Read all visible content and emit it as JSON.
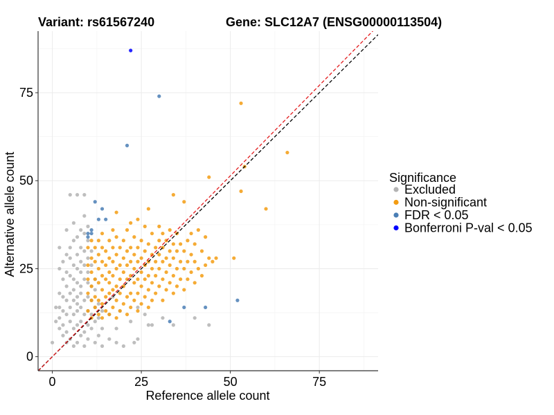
{
  "chart_data": {
    "type": "scatter",
    "title_left": "Variant: rs61567240",
    "title_right": "Gene: SLC12A7 (ENSG00000113504)",
    "xlabel": "Reference allele count",
    "ylabel": "Alternative allele count",
    "xlim": [
      -4,
      91.5
    ],
    "ylim": [
      -4,
      92.5
    ],
    "xticks": [
      0,
      25,
      50,
      75
    ],
    "yticks": [
      0,
      25,
      50,
      75
    ],
    "grid": true,
    "legend": {
      "title": "Significance",
      "position": "right",
      "entries": [
        {
          "name": "Excluded",
          "color": "#b3b3b3"
        },
        {
          "name": "Non-significant",
          "color": "#f39c12"
        },
        {
          "name": "FDR < 0.05",
          "color": "#4a7eb5"
        },
        {
          "name": "Bonferroni P-val < 0.05",
          "color": "#0000ff"
        }
      ]
    },
    "reference_lines": [
      {
        "name": "identity",
        "slope": 1,
        "intercept": 0,
        "color": "#000000",
        "dash": "dashed"
      },
      {
        "name": "fitted",
        "slope": 1.028,
        "intercept": 0,
        "color": "#e31a1c",
        "dash": "dashed"
      }
    ],
    "series": [
      {
        "name": "Excluded",
        "color": "#b3b3b3",
        "points": [
          [
            0,
            4
          ],
          [
            1,
            14
          ],
          [
            1,
            10
          ],
          [
            2,
            8
          ],
          [
            2,
            11
          ],
          [
            2,
            14
          ],
          [
            2,
            18
          ],
          [
            2,
            25
          ],
          [
            2,
            31
          ],
          [
            3,
            6
          ],
          [
            3,
            9
          ],
          [
            3,
            13
          ],
          [
            3,
            17
          ],
          [
            3,
            22
          ],
          [
            3,
            27
          ],
          [
            4,
            4
          ],
          [
            4,
            7
          ],
          [
            4,
            12
          ],
          [
            4,
            16
          ],
          [
            4,
            20
          ],
          [
            4,
            24
          ],
          [
            4,
            29
          ],
          [
            4,
            36
          ],
          [
            5,
            5
          ],
          [
            5,
            10
          ],
          [
            5,
            14
          ],
          [
            5,
            18
          ],
          [
            5,
            23
          ],
          [
            5,
            28
          ],
          [
            5,
            31
          ],
          [
            5,
            46
          ],
          [
            6,
            3
          ],
          [
            6,
            8
          ],
          [
            6,
            12
          ],
          [
            6,
            16
          ],
          [
            6,
            19
          ],
          [
            6,
            22
          ],
          [
            6,
            26
          ],
          [
            6,
            33
          ],
          [
            6,
            38
          ],
          [
            7,
            4
          ],
          [
            7,
            9
          ],
          [
            7,
            13
          ],
          [
            7,
            15
          ],
          [
            7,
            17
          ],
          [
            7,
            21
          ],
          [
            7,
            25
          ],
          [
            7,
            29
          ],
          [
            7,
            34
          ],
          [
            7,
            46
          ],
          [
            8,
            6
          ],
          [
            8,
            10
          ],
          [
            8,
            14
          ],
          [
            8,
            18
          ],
          [
            8,
            20
          ],
          [
            8,
            24
          ],
          [
            8,
            27
          ],
          [
            8,
            31
          ],
          [
            8,
            36
          ],
          [
            9,
            3
          ],
          [
            9,
            7
          ],
          [
            9,
            12
          ],
          [
            9,
            16
          ],
          [
            9,
            22
          ],
          [
            9,
            26
          ],
          [
            9,
            30
          ],
          [
            9,
            35
          ],
          [
            9,
            40
          ],
          [
            9,
            46
          ],
          [
            10,
            5
          ],
          [
            10,
            9
          ],
          [
            10,
            13
          ],
          [
            10,
            17
          ],
          [
            10,
            21
          ],
          [
            10,
            24
          ],
          [
            10,
            28
          ],
          [
            10,
            33
          ],
          [
            10,
            37
          ],
          [
            11,
            8
          ],
          [
            11,
            12
          ],
          [
            11,
            16
          ],
          [
            11,
            20
          ],
          [
            11,
            26
          ],
          [
            11,
            30
          ],
          [
            12,
            4
          ],
          [
            12,
            10
          ],
          [
            12,
            14
          ],
          [
            12,
            19
          ],
          [
            12,
            22
          ],
          [
            13,
            6
          ],
          [
            13,
            11
          ],
          [
            13,
            15
          ],
          [
            14,
            3
          ],
          [
            14,
            8
          ],
          [
            14,
            13
          ],
          [
            16,
            5
          ],
          [
            16,
            12
          ],
          [
            17,
            17
          ],
          [
            18,
            4
          ],
          [
            18,
            8
          ],
          [
            19,
            13
          ],
          [
            20,
            3
          ],
          [
            22,
            10
          ],
          [
            23,
            4
          ],
          [
            24,
            5
          ],
          [
            24,
            14
          ],
          [
            26,
            12
          ],
          [
            27,
            9
          ],
          [
            28,
            9
          ],
          [
            31,
            11
          ],
          [
            34,
            9
          ],
          [
            40,
            11
          ],
          [
            44,
            9
          ]
        ]
      },
      {
        "name": "Non-significant",
        "color": "#f39c12",
        "points": [
          [
            10,
            13
          ],
          [
            10,
            18
          ],
          [
            10,
            22
          ],
          [
            10,
            26
          ],
          [
            10,
            31
          ],
          [
            11,
            11
          ],
          [
            11,
            16
          ],
          [
            11,
            20
          ],
          [
            11,
            24
          ],
          [
            11,
            28
          ],
          [
            11,
            33
          ],
          [
            12,
            14
          ],
          [
            12,
            17
          ],
          [
            12,
            22
          ],
          [
            12,
            27
          ],
          [
            12,
            31
          ],
          [
            13,
            12
          ],
          [
            13,
            16
          ],
          [
            13,
            21
          ],
          [
            13,
            25
          ],
          [
            13,
            29
          ],
          [
            13,
            33
          ],
          [
            14,
            11
          ],
          [
            14,
            15
          ],
          [
            14,
            19
          ],
          [
            14,
            23
          ],
          [
            14,
            27
          ],
          [
            14,
            31
          ],
          [
            14,
            35
          ],
          [
            15,
            13
          ],
          [
            15,
            17
          ],
          [
            15,
            22
          ],
          [
            15,
            26
          ],
          [
            15,
            30
          ],
          [
            16,
            12
          ],
          [
            16,
            18
          ],
          [
            16,
            21
          ],
          [
            16,
            24
          ],
          [
            16,
            28
          ],
          [
            16,
            33
          ],
          [
            17,
            14
          ],
          [
            17,
            19
          ],
          [
            17,
            23
          ],
          [
            17,
            27
          ],
          [
            17,
            31
          ],
          [
            17,
            36
          ],
          [
            18,
            11
          ],
          [
            18,
            16
          ],
          [
            18,
            20
          ],
          [
            18,
            25
          ],
          [
            18,
            29
          ],
          [
            18,
            34
          ],
          [
            18,
            41
          ],
          [
            19,
            13
          ],
          [
            19,
            18
          ],
          [
            19,
            22
          ],
          [
            19,
            26
          ],
          [
            19,
            31
          ],
          [
            20,
            15
          ],
          [
            20,
            20
          ],
          [
            20,
            24
          ],
          [
            20,
            28
          ],
          [
            20,
            33
          ],
          [
            21,
            12
          ],
          [
            21,
            17
          ],
          [
            21,
            22
          ],
          [
            21,
            26
          ],
          [
            21,
            30
          ],
          [
            21,
            36
          ],
          [
            22,
            14
          ],
          [
            22,
            18
          ],
          [
            22,
            23
          ],
          [
            22,
            27
          ],
          [
            22,
            31
          ],
          [
            22,
            38
          ],
          [
            23,
            16
          ],
          [
            23,
            21
          ],
          [
            23,
            25
          ],
          [
            23,
            29
          ],
          [
            23,
            34
          ],
          [
            24,
            13
          ],
          [
            24,
            18
          ],
          [
            24,
            22
          ],
          [
            24,
            27
          ],
          [
            24,
            31
          ],
          [
            24,
            39
          ],
          [
            25,
            15
          ],
          [
            25,
            20
          ],
          [
            25,
            24
          ],
          [
            25,
            28
          ],
          [
            25,
            33
          ],
          [
            26,
            17
          ],
          [
            26,
            22
          ],
          [
            26,
            26
          ],
          [
            26,
            30
          ],
          [
            26,
            37
          ],
          [
            27,
            14
          ],
          [
            27,
            19
          ],
          [
            27,
            23
          ],
          [
            27,
            27
          ],
          [
            27,
            32
          ],
          [
            27,
            42
          ],
          [
            28,
            16
          ],
          [
            28,
            21
          ],
          [
            28,
            25
          ],
          [
            28,
            29
          ],
          [
            28,
            35
          ],
          [
            29,
            18
          ],
          [
            29,
            23
          ],
          [
            29,
            27
          ],
          [
            29,
            31
          ],
          [
            30,
            20
          ],
          [
            30,
            25
          ],
          [
            30,
            29
          ],
          [
            30,
            33
          ],
          [
            30,
            37
          ],
          [
            31,
            16
          ],
          [
            31,
            22
          ],
          [
            31,
            27
          ],
          [
            31,
            31
          ],
          [
            31,
            35
          ],
          [
            32,
            19
          ],
          [
            32,
            24
          ],
          [
            32,
            28
          ],
          [
            32,
            33
          ],
          [
            33,
            21
          ],
          [
            33,
            26
          ],
          [
            33,
            30
          ],
          [
            33,
            36
          ],
          [
            34,
            18
          ],
          [
            34,
            23
          ],
          [
            34,
            28
          ],
          [
            34,
            32
          ],
          [
            34,
            46
          ],
          [
            35,
            20
          ],
          [
            35,
            25
          ],
          [
            35,
            30
          ],
          [
            35,
            35
          ],
          [
            36,
            22
          ],
          [
            36,
            27
          ],
          [
            36,
            32
          ],
          [
            37,
            19
          ],
          [
            37,
            25
          ],
          [
            37,
            30
          ],
          [
            37,
            44
          ],
          [
            38,
            22
          ],
          [
            38,
            27
          ],
          [
            38,
            33
          ],
          [
            39,
            24
          ],
          [
            39,
            29
          ],
          [
            39,
            35
          ],
          [
            40,
            21
          ],
          [
            40,
            27
          ],
          [
            40,
            32
          ],
          [
            41,
            25
          ],
          [
            41,
            36
          ],
          [
            42,
            23
          ],
          [
            42,
            30
          ],
          [
            43,
            26
          ],
          [
            43,
            34
          ],
          [
            44,
            28
          ],
          [
            44,
            51
          ],
          [
            45,
            27
          ],
          [
            46,
            28
          ],
          [
            51,
            28
          ],
          [
            53,
            72
          ],
          [
            53,
            47
          ],
          [
            54,
            54
          ],
          [
            60,
            42
          ],
          [
            66,
            58
          ]
        ]
      },
      {
        "name": "FDR < 0.05",
        "color": "#4a7eb5",
        "points": [
          [
            10,
            35
          ],
          [
            10,
            34
          ],
          [
            11,
            35
          ],
          [
            11,
            36
          ],
          [
            12,
            44
          ],
          [
            13,
            39
          ],
          [
            14,
            42
          ],
          [
            15,
            39
          ],
          [
            21,
            60
          ],
          [
            30,
            74
          ],
          [
            33,
            10
          ],
          [
            37,
            14
          ],
          [
            43,
            14
          ],
          [
            52,
            16
          ]
        ]
      },
      {
        "name": "Bonferroni P-val < 0.05",
        "color": "#0000ff",
        "points": [
          [
            22,
            87
          ]
        ]
      }
    ]
  }
}
